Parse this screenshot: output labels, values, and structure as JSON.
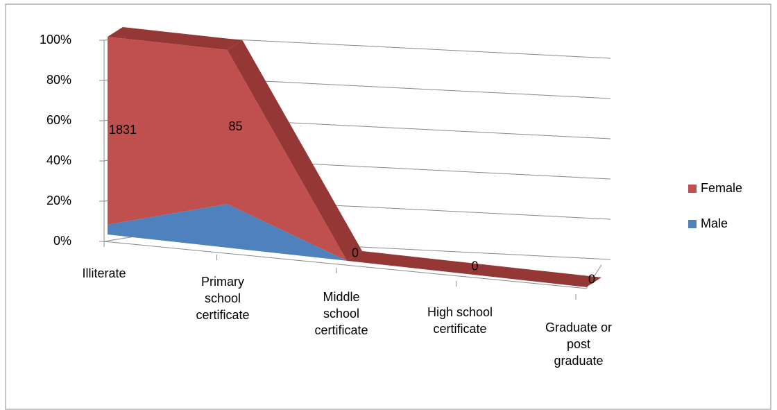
{
  "chart_data": {
    "type": "area3d_percent_stacked",
    "categories": [
      "Illiterate",
      "Primary school certificate",
      "Middle school certificate",
      "High school certificate",
      "Graduate or post graduate"
    ],
    "series": [
      {
        "name": "Male",
        "color": "#4f81bd",
        "values": [
          96,
          24,
          0,
          0,
          0
        ]
      },
      {
        "name": "Female",
        "color": "#c0504d",
        "values": [
          1831,
          85,
          0,
          0,
          0
        ]
      }
    ],
    "data_labels_series": 1,
    "ylim": [
      0,
      100
    ],
    "yticks": [
      {
        "value": 0,
        "label": "0%"
      },
      {
        "value": 20,
        "label": "20%"
      },
      {
        "value": 40,
        "label": "40%"
      },
      {
        "value": 60,
        "label": "60%"
      },
      {
        "value": 80,
        "label": "80%"
      },
      {
        "value": 100,
        "label": "100%"
      }
    ],
    "grid": true,
    "legend": "right"
  }
}
